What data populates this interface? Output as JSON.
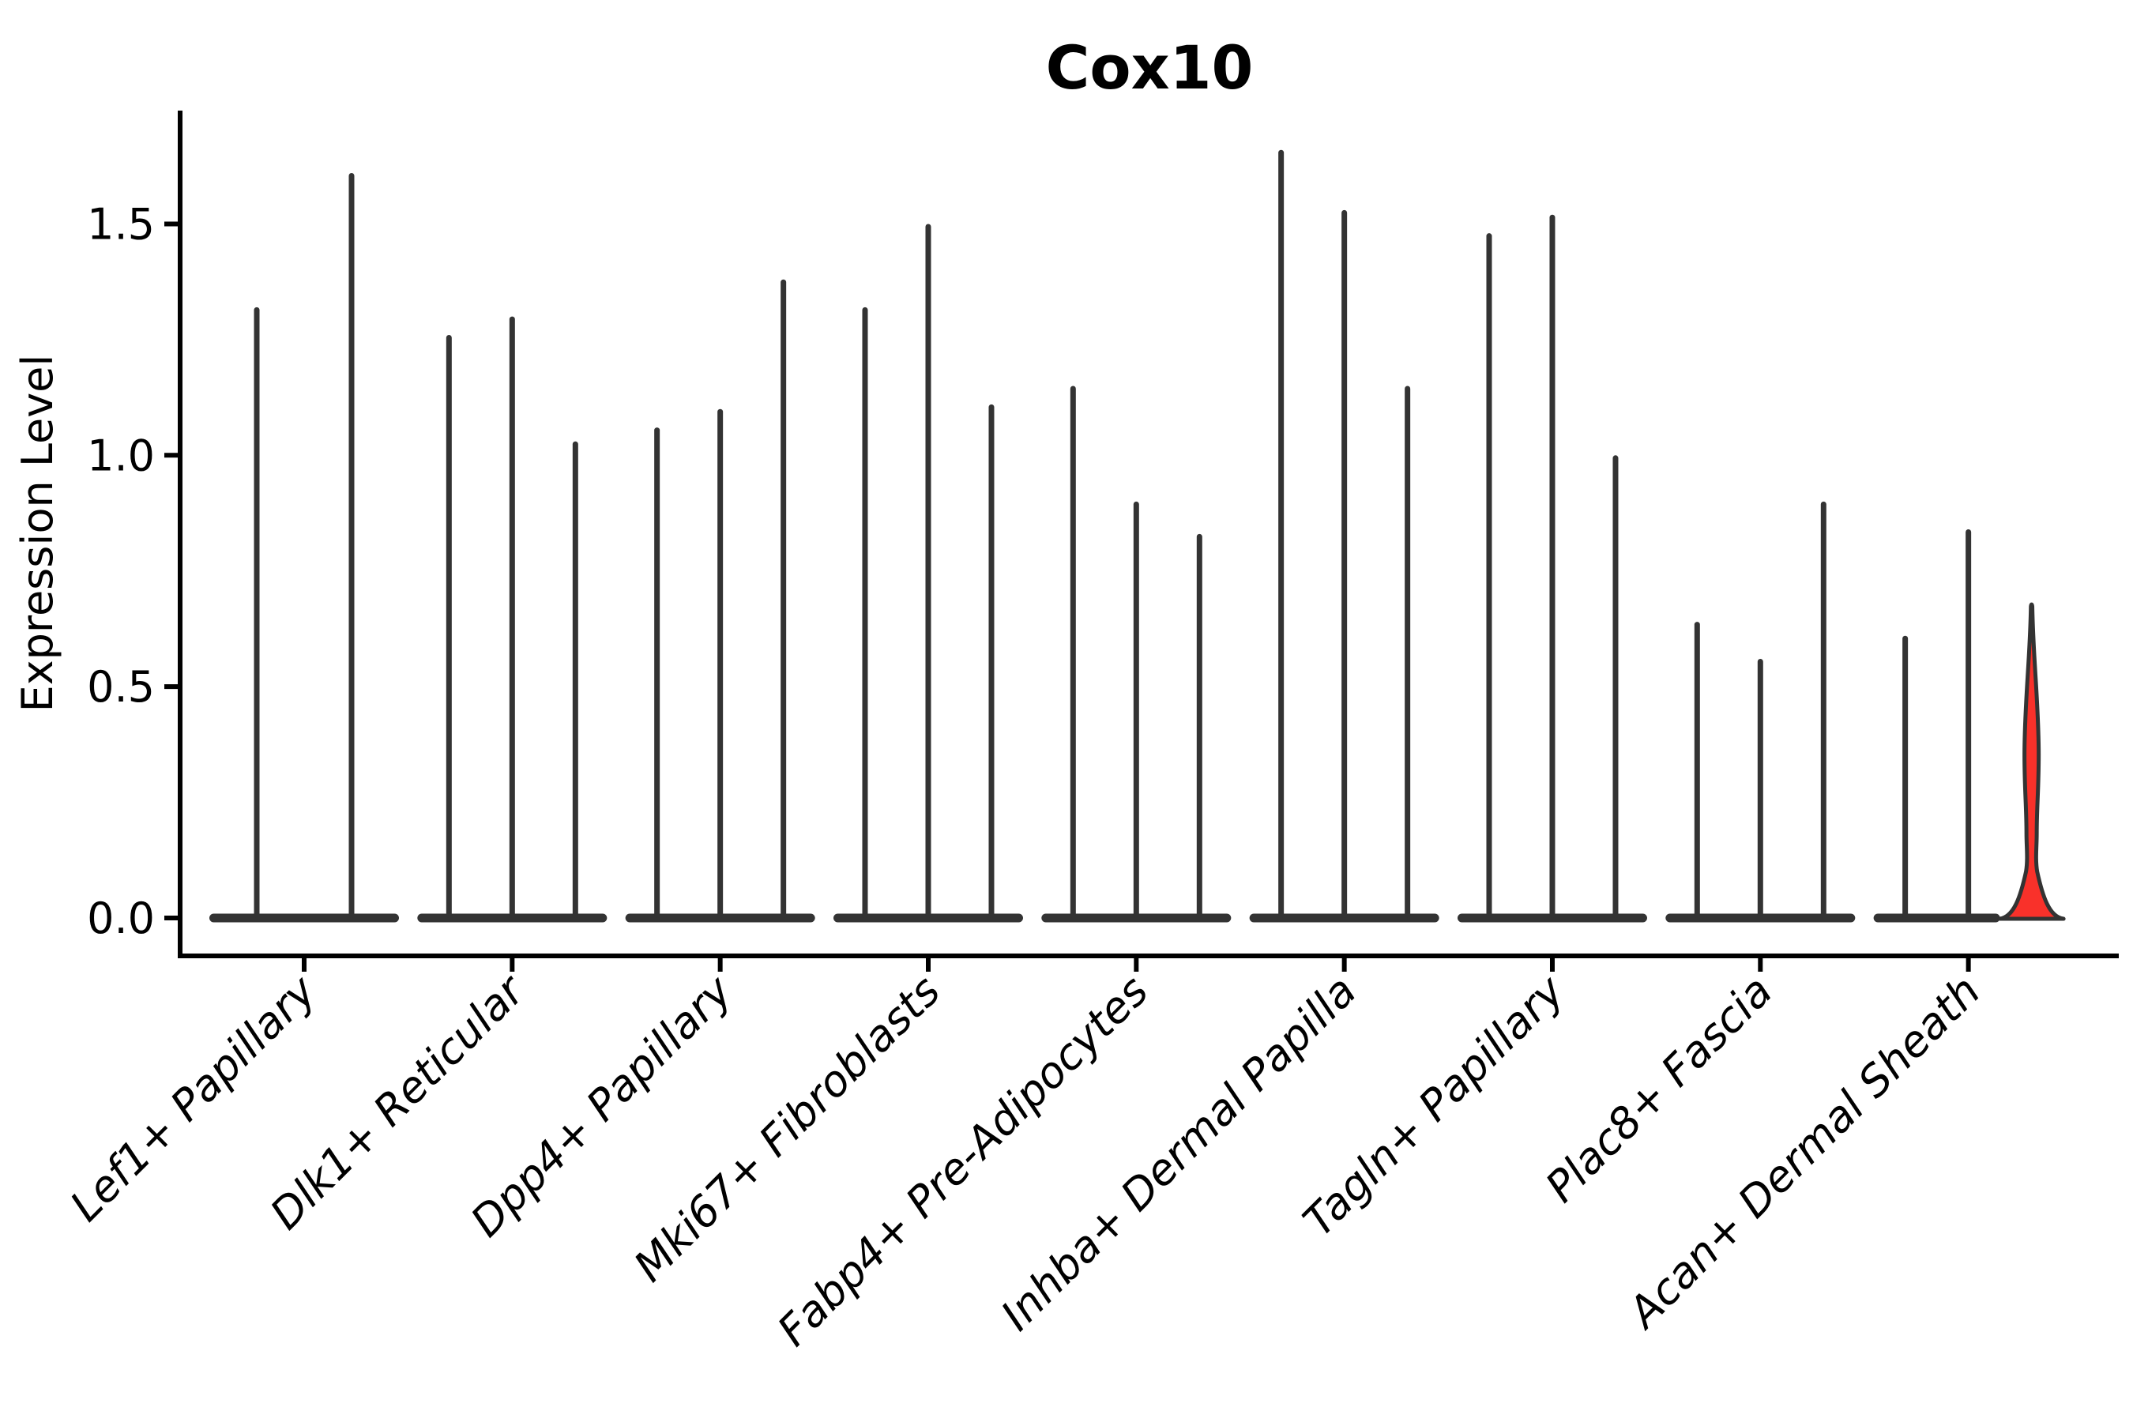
{
  "chart_data": {
    "type": "violin",
    "title": "Cox10",
    "ylabel": "Expression Level",
    "xlabel": "",
    "ylim": [
      0,
      1.75
    ],
    "yticks": [
      0.0,
      0.5,
      1.0,
      1.5
    ],
    "ytick_labels": [
      "0.0",
      "0.5",
      "1.0",
      "1.5"
    ],
    "grid": false,
    "legend": "none",
    "outline_color": "#333333",
    "axis_color": "#000000",
    "highlight_color": "#f9312a",
    "categories": [
      "Lef1+ Papillary",
      "Dlk1+ Reticular",
      "Dpp4+ Papillary",
      "Mki67+ Fibroblasts",
      "Fabp4+ Pre-Adipocytes",
      "Inhba+ Dermal Papilla",
      "Tagln+ Papillary",
      "Plac8+ Fascia",
      "Acan+ Dermal Sheath"
    ],
    "groups": [
      {
        "category": "Lef1+ Papillary",
        "violins": [
          {
            "min": 0,
            "max": 1.32
          },
          {
            "min": 0,
            "max": 1.61
          }
        ]
      },
      {
        "category": "Dlk1+ Reticular",
        "violins": [
          {
            "min": 0,
            "max": 1.26
          },
          {
            "min": 0,
            "max": 1.3
          },
          {
            "min": 0,
            "max": 1.03
          }
        ]
      },
      {
        "category": "Dpp4+ Papillary",
        "violins": [
          {
            "min": 0,
            "max": 1.06
          },
          {
            "min": 0,
            "max": 1.1
          },
          {
            "min": 0,
            "max": 1.38
          }
        ]
      },
      {
        "category": "Mki67+ Fibroblasts",
        "violins": [
          {
            "min": 0,
            "max": 1.32
          },
          {
            "min": 0,
            "max": 1.5
          },
          {
            "min": 0,
            "max": 1.11
          }
        ]
      },
      {
        "category": "Fabp4+ Pre-Adipocytes",
        "violins": [
          {
            "min": 0,
            "max": 1.15
          },
          {
            "min": 0,
            "max": 0.9
          },
          {
            "min": 0,
            "max": 0.83
          }
        ]
      },
      {
        "category": "Inhba+ Dermal Papilla",
        "violins": [
          {
            "min": 0,
            "max": 1.66
          },
          {
            "min": 0,
            "max": 1.53
          },
          {
            "min": 0,
            "max": 1.15
          }
        ]
      },
      {
        "category": "Tagln+ Papillary",
        "violins": [
          {
            "min": 0,
            "max": 1.48
          },
          {
            "min": 0,
            "max": 1.52
          },
          {
            "min": 0,
            "max": 1.0
          }
        ]
      },
      {
        "category": "Plac8+ Fascia",
        "violins": [
          {
            "min": 0,
            "max": 0.64
          },
          {
            "min": 0,
            "max": 0.56
          },
          {
            "min": 0,
            "max": 0.9
          }
        ]
      },
      {
        "category": "Acan+ Dermal Sheath",
        "violins": [
          {
            "min": 0,
            "max": 0.61
          },
          {
            "min": 0,
            "max": 0.84
          },
          {
            "min": 0,
            "max": 0.68,
            "highlight": true,
            "shape": "filled-violin"
          }
        ]
      }
    ],
    "note": "All violins have their density mass concentrated at 0 (flat base) with a thin spike to the max; last violin of Acan+ Dermal Sheath is red-filled with a visible density body."
  }
}
